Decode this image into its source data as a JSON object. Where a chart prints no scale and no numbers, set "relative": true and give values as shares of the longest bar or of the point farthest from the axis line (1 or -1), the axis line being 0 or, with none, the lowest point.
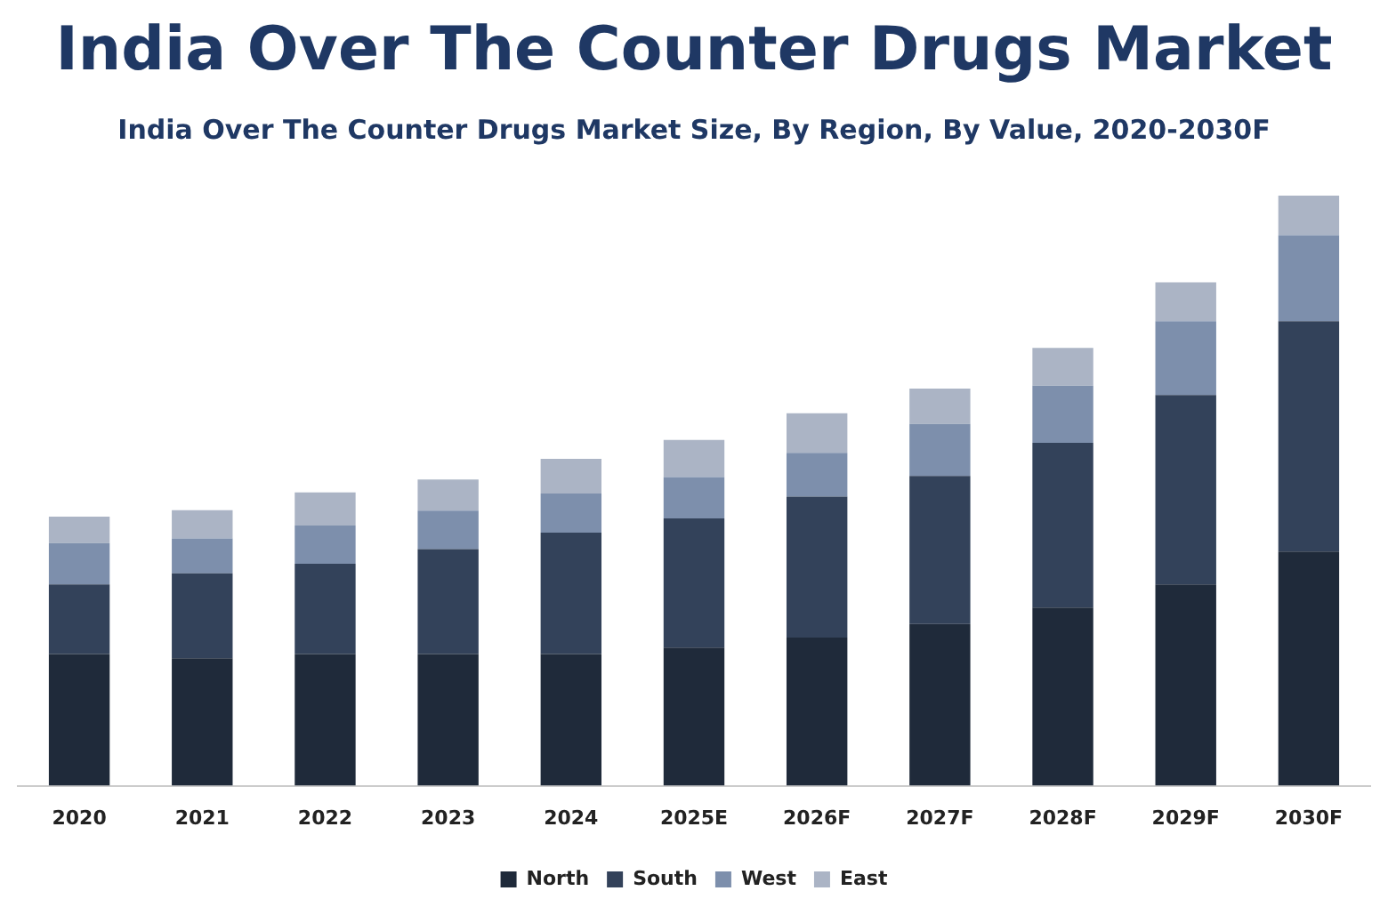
{
  "chart_data": {
    "type": "bar",
    "title": "India Over The Counter Drugs Market",
    "subtitle": "India Over The Counter Drugs Market Size, By Region, By Value, 2020-2030F",
    "categories": [
      "2020",
      "2021",
      "2022",
      "2023",
      "2024",
      "2025E",
      "2026F",
      "2027F",
      "2028F",
      "2029F",
      "2030F"
    ],
    "relative": true,
    "stacked": true,
    "grid": false,
    "legend": "bottom",
    "series": [
      {
        "name": "North",
        "color": "#1f2a3a",
        "values": [
          0.223,
          0.216,
          0.223,
          0.223,
          0.223,
          0.234,
          0.251,
          0.274,
          0.302,
          0.341,
          0.397
        ]
      },
      {
        "name": "South",
        "color": "#33425a",
        "values": [
          0.118,
          0.144,
          0.153,
          0.178,
          0.206,
          0.219,
          0.239,
          0.251,
          0.279,
          0.321,
          0.39
        ]
      },
      {
        "name": "West",
        "color": "#7d8fac",
        "values": [
          0.07,
          0.059,
          0.065,
          0.065,
          0.066,
          0.07,
          0.074,
          0.088,
          0.097,
          0.125,
          0.146
        ]
      },
      {
        "name": "East",
        "color": "#abb4c5",
        "values": [
          0.045,
          0.048,
          0.056,
          0.053,
          0.059,
          0.063,
          0.067,
          0.06,
          0.064,
          0.066,
          0.067
        ]
      }
    ]
  }
}
